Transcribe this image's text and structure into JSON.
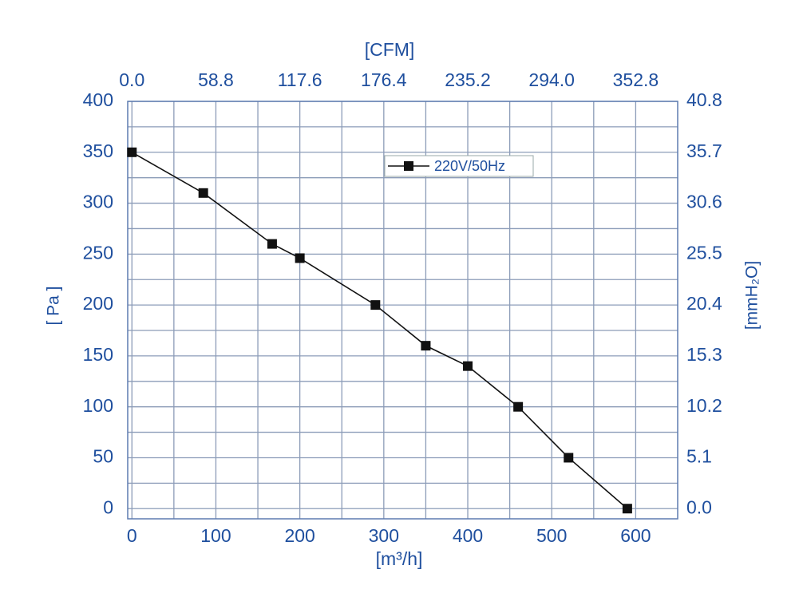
{
  "chart_data": {
    "type": "line",
    "xlabel": "[m³/h]",
    "x2label": "[CFM]",
    "ylabel": "[ Pa ]",
    "y2label": "[mmH₂O]",
    "x": [
      0,
      85,
      167,
      200,
      290,
      350,
      400,
      460,
      520,
      590
    ],
    "series": [
      {
        "name": "220V/50Hz",
        "color": "#111111",
        "values": [
          350,
          310,
          260,
          246,
          200,
          160,
          140,
          100,
          50,
          0
        ]
      }
    ],
    "xlim": [
      -5,
      650
    ],
    "xticks": [
      0,
      100,
      200,
      300,
      400,
      500,
      600
    ],
    "xminorticks": [
      50,
      150,
      250,
      350,
      450,
      550
    ],
    "x2lim": [
      -2.94,
      382.2
    ],
    "x2ticks": [
      {
        "value": 0,
        "label": "0.0"
      },
      58.8,
      117.6,
      176.4,
      235.2,
      {
        "value": 294,
        "label": "294.0"
      },
      352.8
    ],
    "ylim": [
      -10,
      400
    ],
    "yticks": [
      0,
      50,
      100,
      150,
      200,
      250,
      300,
      350,
      400
    ],
    "yminorticks": [
      25,
      75,
      125,
      175,
      225,
      275,
      325,
      375
    ],
    "y2lim": [
      -1.02,
      40.8
    ],
    "y2ticks": [
      {
        "value": 0,
        "label": "0.0"
      },
      5.1,
      10.2,
      15.3,
      20.4,
      25.5,
      30.6,
      35.7,
      40.8
    ],
    "grid": true,
    "legend": "top"
  }
}
